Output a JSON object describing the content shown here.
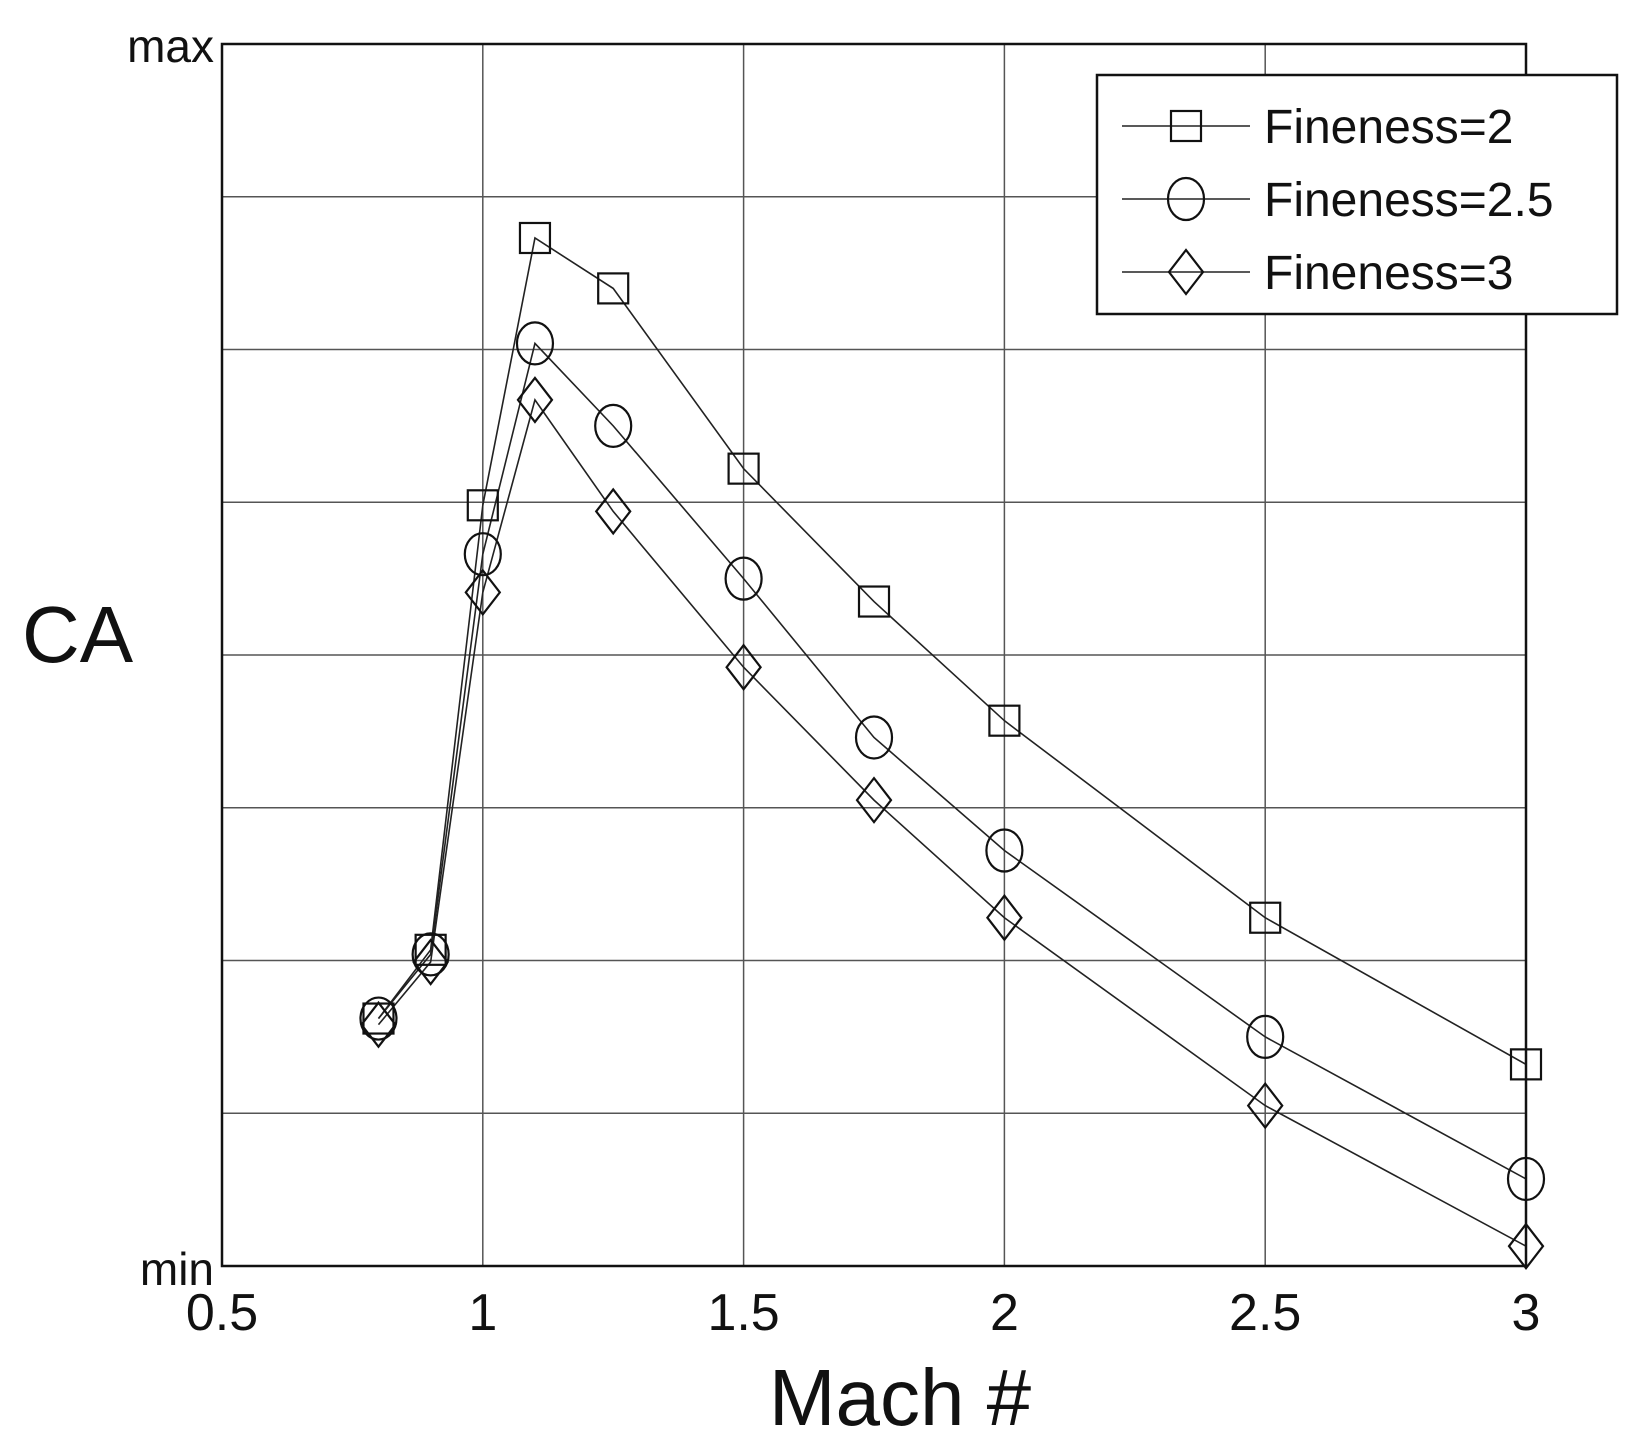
{
  "chart_data": {
    "type": "line",
    "title": "",
    "xlabel": "Mach #",
    "ylabel": "CA",
    "xlim": [
      0.5,
      3
    ],
    "ylim": [
      0,
      8
    ],
    "x_ticks": [
      "0.5",
      "1",
      "1.5",
      "2",
      "2.5",
      "3"
    ],
    "y_tick_labels": {
      "min": "min",
      "max": "max"
    },
    "grid": true,
    "legend_position": "top-right",
    "series": [
      {
        "name": "Fineness=2",
        "marker": "square",
        "x": [
          0.8,
          0.9,
          1.0,
          1.1,
          1.25,
          1.5,
          1.75,
          2.0,
          2.5,
          3.0
        ],
        "y": [
          1.62,
          2.07,
          4.98,
          6.73,
          6.4,
          5.22,
          4.35,
          3.57,
          2.28,
          1.32
        ]
      },
      {
        "name": "Fineness=2.5",
        "marker": "circle",
        "x": [
          0.8,
          0.9,
          1.0,
          1.1,
          1.25,
          1.5,
          1.75,
          2.0,
          2.5,
          3.0
        ],
        "y": [
          1.62,
          2.04,
          4.66,
          6.04,
          5.5,
          4.5,
          3.46,
          2.72,
          1.5,
          0.57
        ]
      },
      {
        "name": "Fineness=3",
        "marker": "diamond",
        "x": [
          0.8,
          0.9,
          1.0,
          1.1,
          1.25,
          1.5,
          1.75,
          2.0,
          2.5,
          3.0
        ],
        "y": [
          1.58,
          1.99,
          4.41,
          5.67,
          4.94,
          3.92,
          3.05,
          2.28,
          1.05,
          0.13
        ]
      }
    ]
  }
}
